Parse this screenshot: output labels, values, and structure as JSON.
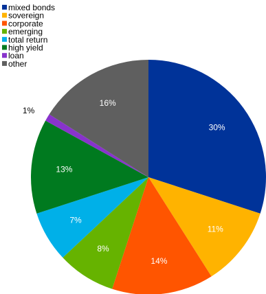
{
  "chart_data": {
    "type": "pie",
    "categories": [
      "mixed bonds",
      "sovereign",
      "corporate",
      "emerging",
      "total return",
      "high yield",
      "loan",
      "other"
    ],
    "values": [
      30,
      11,
      14,
      8,
      7,
      13,
      1,
      16
    ],
    "labels": [
      "30%",
      "11%",
      "14%",
      "8%",
      "7%",
      "13%",
      "1%",
      "16%"
    ],
    "colors": [
      "#003399",
      "#FFB300",
      "#FF5500",
      "#66B300",
      "#00B0E8",
      "#007A1F",
      "#8833CC",
      "#5F5F5F"
    ],
    "label_colors": [
      "#ffffff",
      "#ffffff",
      "#ffffff",
      "#ffffff",
      "#ffffff",
      "#ffffff",
      "#000000",
      "#ffffff"
    ],
    "start_angle_deg": 0,
    "direction": "clockwise",
    "legend_position": "top-left"
  }
}
